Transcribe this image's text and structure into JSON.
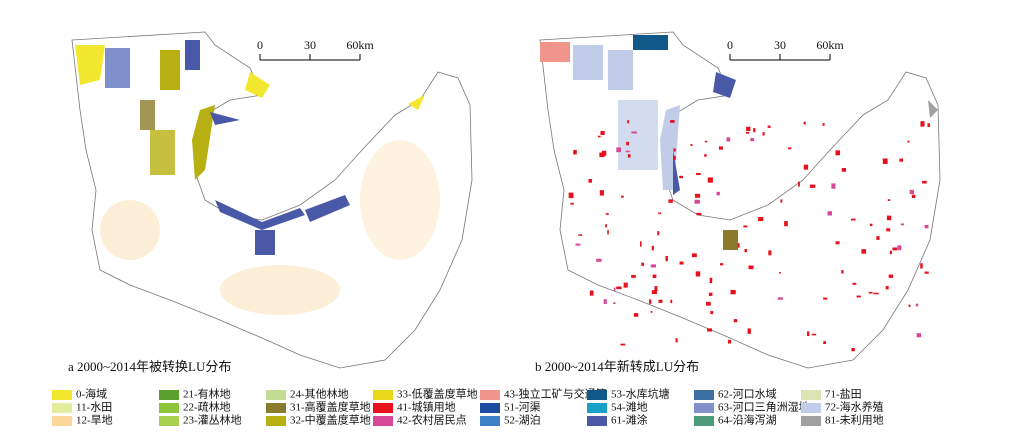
{
  "maps": [
    {
      "caption": "a 2000~2014年被转换LU分布",
      "scale_labels": [
        "0",
        "30",
        "60km"
      ]
    },
    {
      "caption": "b 2000~2014年新转成LU分布",
      "scale_labels": [
        "0",
        "30",
        "60km"
      ]
    }
  ],
  "legend": [
    {
      "label": "0-海域",
      "color": "#f2e830"
    },
    {
      "label": "11-水田",
      "color": "#e4eca0"
    },
    {
      "label": "12-旱地",
      "color": "#fbd89a"
    },
    {
      "label": "21-有林地",
      "color": "#5aa02c"
    },
    {
      "label": "22-疏林地",
      "color": "#8cc43c"
    },
    {
      "label": "23-灌丛林地",
      "color": "#a8d050"
    },
    {
      "label": "24-其他林地",
      "color": "#c5dc94"
    },
    {
      "label": "31-高覆盖度草地",
      "color": "#8c7a2c"
    },
    {
      "label": "32-中覆盖度草地",
      "color": "#b8b012"
    },
    {
      "label": "33-低覆盖度草地",
      "color": "#e8d81a"
    },
    {
      "label": "41-城镇用地",
      "color": "#e8101c"
    },
    {
      "label": "42-农村居民点",
      "color": "#d84898"
    },
    {
      "label": "43-独立工矿与交通等",
      "color": "#f0948c"
    },
    {
      "label": "51-河渠",
      "color": "#1a4ca0"
    },
    {
      "label": "52-湖泊",
      "color": "#3c80c8"
    },
    {
      "label": "53-水库坑塘",
      "color": "#105888"
    },
    {
      "label": "54-滩地",
      "color": "#1aa0c8"
    },
    {
      "label": "61-滩涂",
      "color": "#4a58a8"
    },
    {
      "label": "62-河口水域",
      "color": "#3c70a0"
    },
    {
      "label": "63-河口三角洲湿地",
      "color": "#8090cc"
    },
    {
      "label": "64-沿海泻湖",
      "color": "#4f9a78"
    },
    {
      "label": "71-盐田",
      "color": "#dce4b4"
    },
    {
      "label": "72-海水养殖",
      "color": "#c0cce8"
    },
    {
      "label": "81-未利用地",
      "color": "#a0a0a0"
    }
  ]
}
